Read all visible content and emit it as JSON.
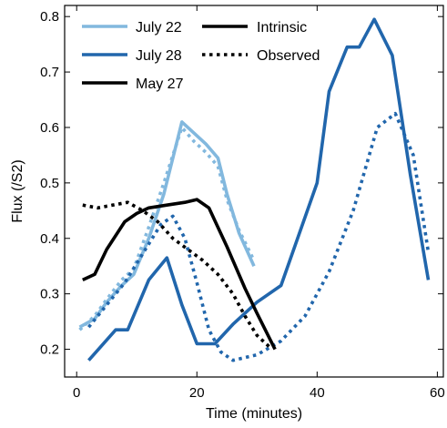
{
  "chart_data": {
    "type": "line",
    "xlabel": "Time (minutes)",
    "ylabel": "Flux (/S2)",
    "xlim": [
      -2,
      61
    ],
    "ylim": [
      0.15,
      0.82
    ],
    "xticks": [
      0,
      20,
      40,
      60
    ],
    "xtick_labels": [
      "0",
      "20",
      "40",
      "60"
    ],
    "yticks": [
      0.2,
      0.3,
      0.4,
      0.5,
      0.6,
      0.7,
      0.8
    ],
    "ytick_labels": [
      "0.2",
      "0.3",
      "0.4",
      "0.5",
      "0.6",
      "0.7",
      "0.8"
    ],
    "grid": false,
    "legend_position": "top-left",
    "legend": {
      "colors": [
        {
          "name": "July 22",
          "color": "#82b8de"
        },
        {
          "name": "July 28",
          "color": "#2166ac"
        },
        {
          "name": "May 27",
          "color": "#000000"
        }
      ],
      "styles": [
        {
          "name": "Intrinsic",
          "dash": "solid"
        },
        {
          "name": "Observed",
          "dash": "dotted"
        }
      ]
    },
    "series": [
      {
        "name": "July 22",
        "kind": "Observed",
        "color": "#82b8de",
        "dash": "dotted",
        "x": [
          0.5,
          3,
          5,
          7.5,
          9.5,
          12,
          14.5,
          17.5,
          19.5,
          21.5,
          23.5,
          25,
          27,
          29.5
        ],
        "y": [
          0.235,
          0.26,
          0.29,
          0.325,
          0.345,
          0.42,
          0.5,
          0.6,
          0.575,
          0.555,
          0.53,
          0.47,
          0.415,
          0.36
        ]
      },
      {
        "name": "July 22",
        "kind": "Intrinsic",
        "color": "#82b8de",
        "dash": "solid",
        "x": [
          0.5,
          3,
          5,
          7.5,
          9.5,
          12,
          14.5,
          17.5,
          19.5,
          21.5,
          23.5,
          25,
          27,
          29.5
        ],
        "y": [
          0.24,
          0.255,
          0.285,
          0.315,
          0.335,
          0.4,
          0.48,
          0.61,
          0.59,
          0.57,
          0.545,
          0.48,
          0.41,
          0.35
        ]
      },
      {
        "name": "July 28",
        "kind": "Observed",
        "color": "#2166ac",
        "dash": "dotted",
        "x": [
          2,
          5,
          8,
          10,
          12,
          14,
          16,
          18,
          20,
          22,
          24,
          26,
          30,
          34,
          38,
          42,
          46,
          50,
          53,
          56,
          58.5
        ],
        "y": [
          0.24,
          0.28,
          0.32,
          0.355,
          0.39,
          0.425,
          0.44,
          0.4,
          0.32,
          0.235,
          0.195,
          0.18,
          0.19,
          0.215,
          0.26,
          0.34,
          0.45,
          0.6,
          0.625,
          0.55,
          0.375
        ]
      },
      {
        "name": "July 28",
        "kind": "Intrinsic",
        "color": "#2166ac",
        "dash": "solid",
        "x": [
          2,
          6.5,
          8.5,
          12,
          15,
          17.5,
          20,
          23,
          26,
          30,
          34,
          40,
          42,
          45,
          47,
          49.5,
          52.5,
          55.5,
          58.5
        ],
        "y": [
          0.18,
          0.235,
          0.235,
          0.325,
          0.365,
          0.28,
          0.21,
          0.21,
          0.245,
          0.285,
          0.315,
          0.5,
          0.665,
          0.745,
          0.745,
          0.795,
          0.73,
          0.515,
          0.325
        ]
      },
      {
        "name": "May 27",
        "kind": "Observed",
        "color": "#000000",
        "dash": "dotted",
        "x": [
          1,
          3.5,
          6,
          8.5,
          11,
          13.5,
          16,
          18.5,
          21,
          23.5,
          26,
          28,
          30,
          32.5
        ],
        "y": [
          0.46,
          0.455,
          0.46,
          0.465,
          0.45,
          0.43,
          0.4,
          0.38,
          0.36,
          0.335,
          0.3,
          0.26,
          0.225,
          0.2
        ]
      },
      {
        "name": "May 27",
        "kind": "Intrinsic",
        "color": "#000000",
        "dash": "solid",
        "x": [
          1,
          3,
          5,
          8,
          10,
          12,
          15,
          18,
          20,
          22,
          25,
          28,
          30,
          33
        ],
        "y": [
          0.325,
          0.335,
          0.38,
          0.43,
          0.445,
          0.455,
          0.46,
          0.465,
          0.47,
          0.455,
          0.385,
          0.31,
          0.265,
          0.2
        ]
      }
    ]
  }
}
